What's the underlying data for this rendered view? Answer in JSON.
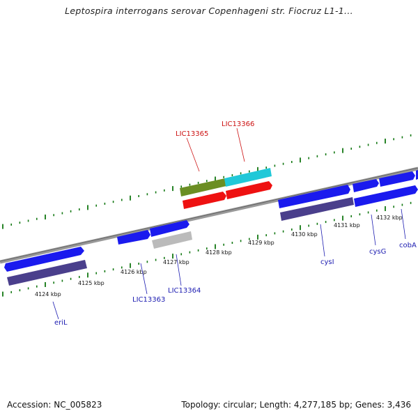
{
  "title": "Leptospira interrogans serovar Copenhageni str. Fiocruz L1-1...",
  "footer": {
    "accession": "Accession: NC_005823",
    "summary": "Topology: circular; Length: 4,277,185 bp; Genes: 3,436"
  },
  "colors": {
    "backbone": "#888888",
    "tick": "#117711",
    "cds": "#1a1aee",
    "cds_dark": "#4a3f8c",
    "highlight_label": "#cc1111",
    "gene_label": "#1a1ab0",
    "olive": "#6b8e23",
    "cyan": "#20c8d8",
    "red": "#ee1111",
    "gray": "#bbbbbb"
  },
  "scale_labels": [
    "4124 kbp",
    "4125 kbp",
    "4126 kbp",
    "4127 kbp",
    "4128 kbp",
    "4129 kbp",
    "4130 kbp",
    "4131 kbp",
    "4132 kbp"
  ],
  "gene_labels_top": [
    "LIC13365",
    "LIC13366"
  ],
  "gene_labels_bottom": [
    "eriL",
    "LIC13363",
    "LIC13364",
    "cysI",
    "cysG",
    "cobA"
  ]
}
